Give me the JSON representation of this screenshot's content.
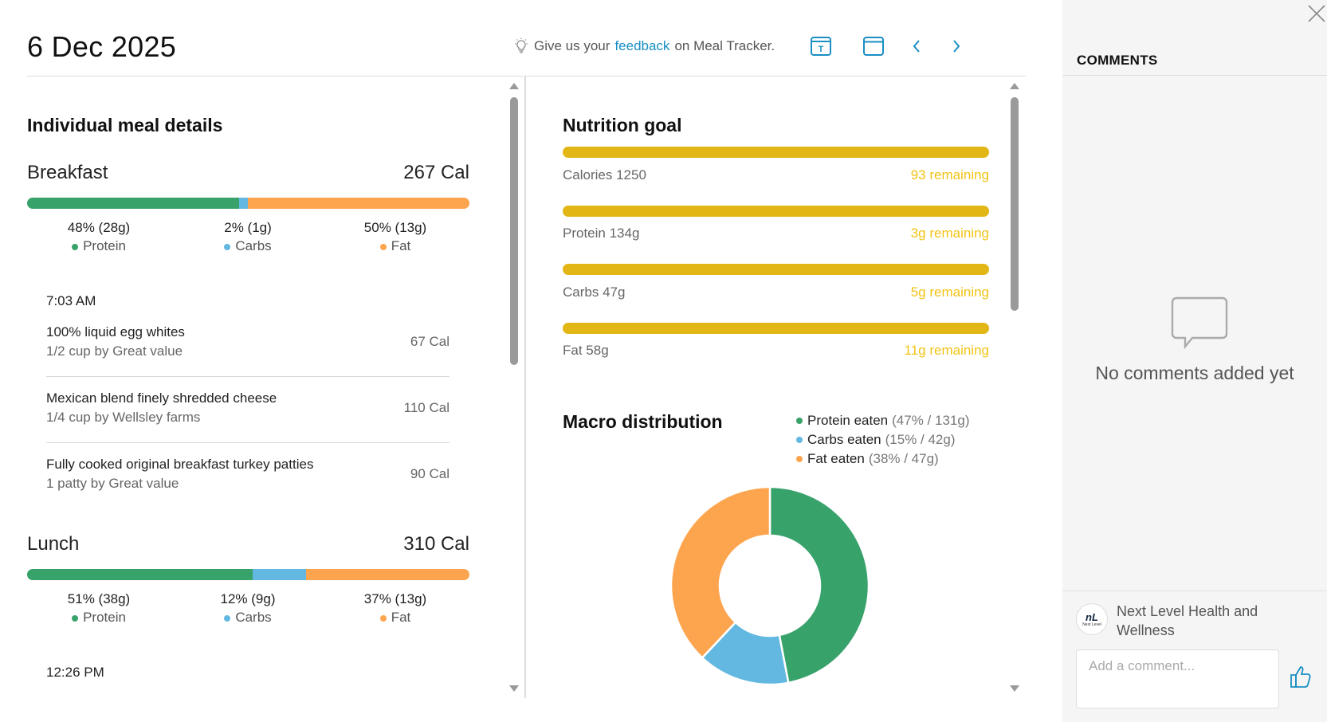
{
  "header": {
    "date": "6 Dec 2025",
    "feedback_prefix": "Give us your",
    "feedback_link": "feedback",
    "feedback_suffix": "on Meal Tracker."
  },
  "meal_details": {
    "title": "Individual meal details",
    "meals": [
      {
        "name": "Breakfast",
        "calories": "267 Cal",
        "macros": [
          {
            "label": "Protein",
            "value": "48% (28g)",
            "share": 48
          },
          {
            "label": "Carbs",
            "value": "2% (1g)",
            "share": 2
          },
          {
            "label": "Fat",
            "value": "50% (13g)",
            "share": 50
          }
        ],
        "time": "7:03 AM",
        "foods": [
          {
            "name": "100% liquid egg whites",
            "serving": "1/2 cup by Great value",
            "calories": "67 Cal"
          },
          {
            "name": "Mexican blend finely shredded cheese",
            "serving": "1/4 cup by Wellsley farms",
            "calories": "110 Cal"
          },
          {
            "name": "Fully cooked original breakfast turkey patties",
            "serving": "1 patty by Great value",
            "calories": "90 Cal"
          }
        ]
      },
      {
        "name": "Lunch",
        "calories": "310 Cal",
        "macros": [
          {
            "label": "Protein",
            "value": "51% (38g)",
            "share": 51
          },
          {
            "label": "Carbs",
            "value": "12% (9g)",
            "share": 12
          },
          {
            "label": "Fat",
            "value": "37% (13g)",
            "share": 37
          }
        ],
        "time": "12:26 PM"
      }
    ]
  },
  "nutrition_goal": {
    "title": "Nutrition goal",
    "goals": [
      {
        "label": "Calories 1250",
        "remaining": "93 remaining"
      },
      {
        "label": "Protein 134g",
        "remaining": "3g remaining"
      },
      {
        "label": "Carbs 47g",
        "remaining": "5g remaining"
      },
      {
        "label": "Fat 58g",
        "remaining": "11g remaining"
      }
    ]
  },
  "macro_distribution": {
    "title": "Macro distribution",
    "legend": [
      {
        "label": "Protein eaten",
        "detail": "(47% / 131g)"
      },
      {
        "label": "Carbs eaten",
        "detail": "(15% / 42g)"
      },
      {
        "label": "Fat eaten",
        "detail": "(38% / 47g)"
      }
    ]
  },
  "chart_data": {
    "type": "pie",
    "title": "Macro distribution",
    "categories": [
      "Protein eaten",
      "Carbs eaten",
      "Fat eaten"
    ],
    "values": [
      47,
      15,
      38
    ],
    "grams": [
      131,
      42,
      47
    ],
    "colors": [
      "#38a26b",
      "#62b8e0",
      "#fda44e"
    ],
    "legend_position": "top-right"
  },
  "colors": {
    "protein": "#38a26b",
    "carbs": "#62b8e0",
    "fat": "#fda44e",
    "goal_bar": "#e2b614",
    "goal_text": "#f2c315",
    "link": "#1a8fc4"
  },
  "comments": {
    "title": "COMMENTS",
    "empty_text": "No comments added yet",
    "org_name": "Next Level Health and Wellness",
    "logo_text": "nL",
    "logo_subtext": "Next Level",
    "input_placeholder": "Add a comment..."
  },
  "icons": {
    "feedback": "lightbulb-icon",
    "text_view": "text-box-icon",
    "calendar": "calendar-icon",
    "previous": "chevron-left-icon",
    "next": "chevron-right-icon",
    "close": "close-icon",
    "empty": "speech-bubble-icon",
    "like": "thumbs-up-icon"
  }
}
